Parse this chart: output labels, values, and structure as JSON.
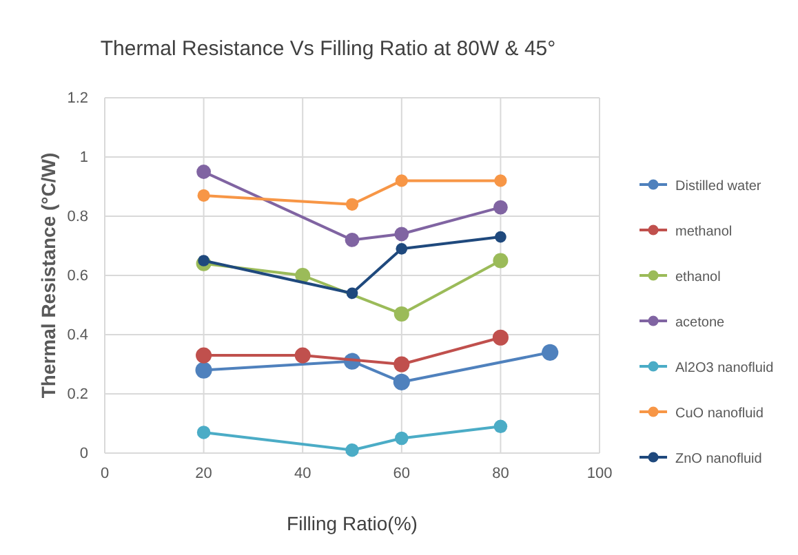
{
  "chart_data": {
    "type": "line",
    "title": "Thermal Resistance Vs Filling Ratio at 80W & 45°",
    "xlabel": "Filling Ratio(%)",
    "ylabel": "Thermal Resistance (°C/W)",
    "xlim": [
      0,
      100
    ],
    "xticks": [
      0,
      20,
      40,
      60,
      80,
      100
    ],
    "ylim": [
      0,
      1.2
    ],
    "yticks": [
      0,
      0.2,
      0.4,
      0.6,
      0.8,
      1,
      1.2
    ],
    "grid": true,
    "legend": "right",
    "marker": "circle",
    "line_style": "solid",
    "series": [
      {
        "name": "Distilled water",
        "color": "#4f81bd",
        "x": [
          20,
          50,
          60,
          90
        ],
        "values": [
          0.28,
          0.31,
          0.24,
          0.34
        ]
      },
      {
        "name": "methanol",
        "color": "#c0504d",
        "x": [
          20,
          40,
          60,
          80
        ],
        "values": [
          0.33,
          0.33,
          0.3,
          0.39
        ]
      },
      {
        "name": "ethanol",
        "color": "#9bbb59",
        "x": [
          20,
          40,
          50,
          60,
          80
        ],
        "values": [
          0.64,
          0.6,
          null,
          0.47,
          0.65
        ]
      },
      {
        "name": "acetone",
        "color": "#8064a2",
        "x": [
          20,
          50,
          60,
          80
        ],
        "values": [
          0.95,
          0.72,
          0.74,
          0.83
        ]
      },
      {
        "name": "Al2O3 nanofluid",
        "color": "#4bacc6",
        "x": [
          20,
          50,
          60,
          80
        ],
        "values": [
          0.07,
          0.01,
          0.05,
          0.09
        ]
      },
      {
        "name": "CuO nanofluid",
        "color": "#f79646",
        "x": [
          20,
          50,
          60,
          80
        ],
        "values": [
          0.87,
          0.84,
          0.92,
          0.92
        ]
      },
      {
        "name": "ZnO nanofluid",
        "color": "#1f497d",
        "x": [
          20,
          50,
          60,
          80
        ],
        "values": [
          0.65,
          0.54,
          0.69,
          0.73
        ]
      }
    ]
  }
}
